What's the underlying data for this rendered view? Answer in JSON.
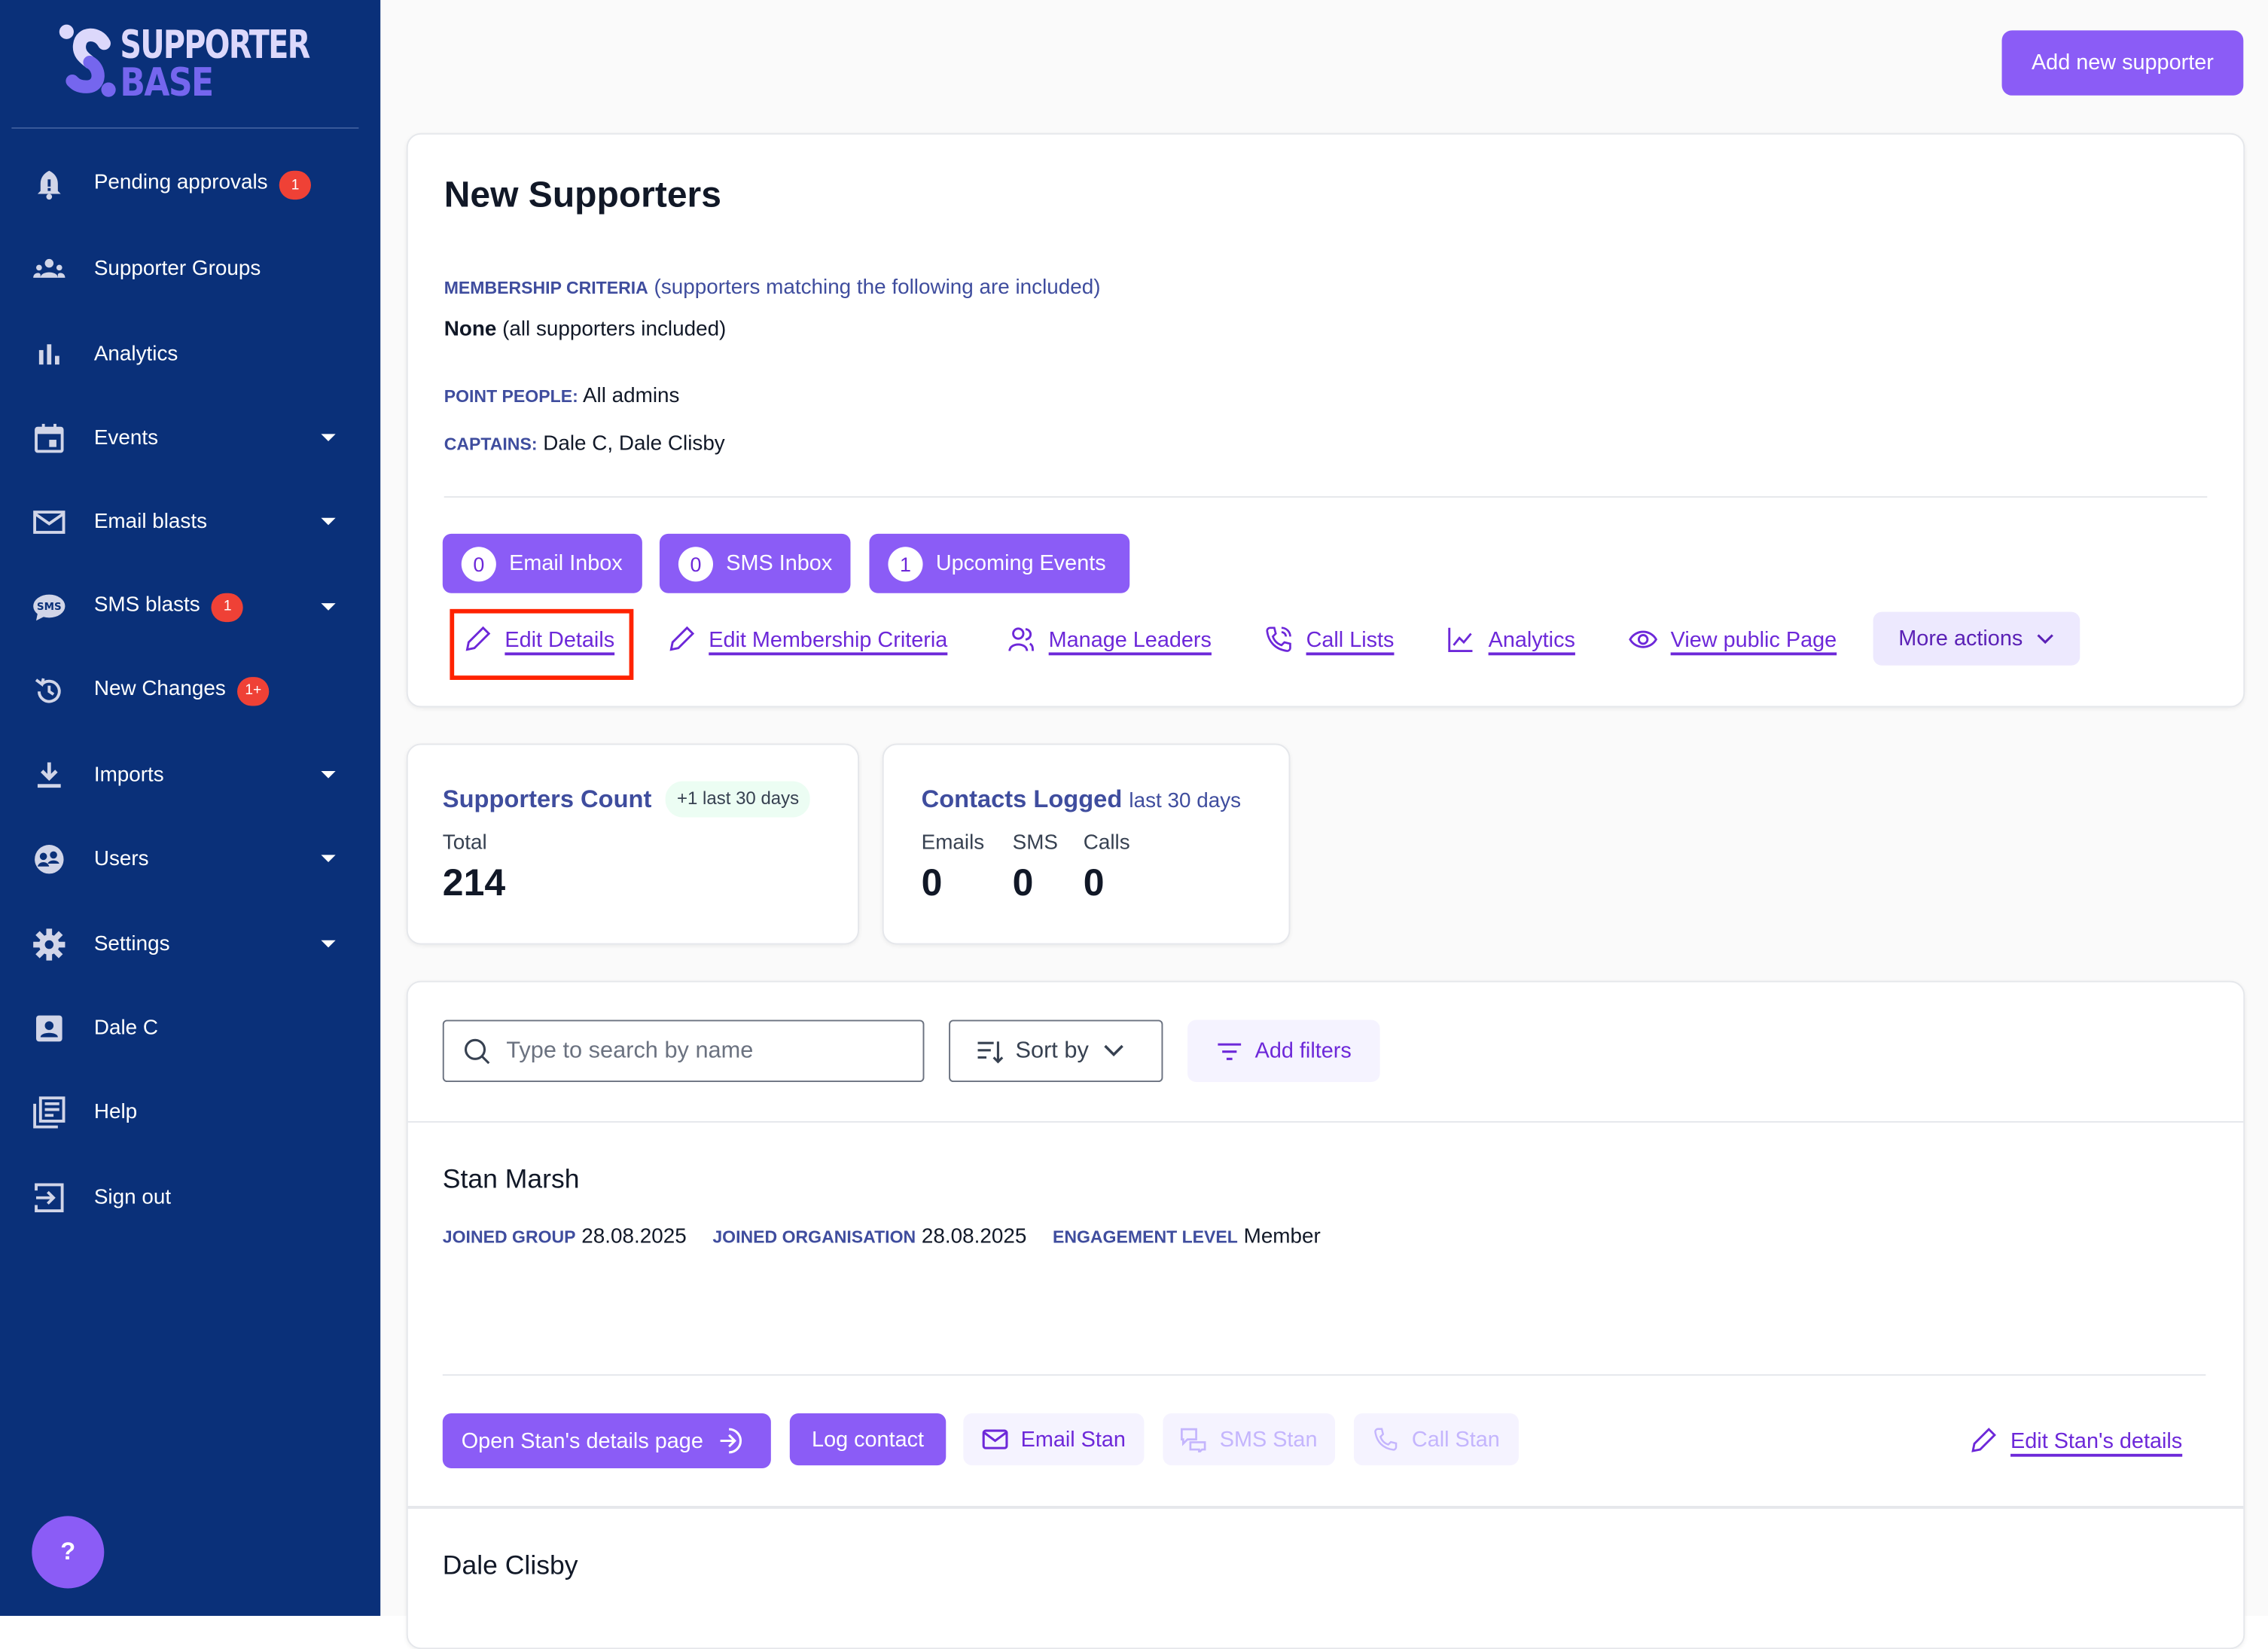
{
  "brand": {
    "line1": "SUPPORTER",
    "line2": "BASE",
    "colors": {
      "sidebar": "#0a3079",
      "accent": "#8b5cf6",
      "link": "#6d28d9",
      "badge": "#ef4136"
    }
  },
  "sidebar": {
    "items": [
      {
        "label": "Pending approvals",
        "icon": "bell-alert-icon",
        "badge": "1"
      },
      {
        "label": "Supporter Groups",
        "icon": "groups-icon"
      },
      {
        "label": "Analytics",
        "icon": "bar-chart-icon"
      },
      {
        "label": "Events",
        "icon": "calendar-icon",
        "dropdown": true
      },
      {
        "label": "Email blasts",
        "icon": "mail-icon",
        "dropdown": true
      },
      {
        "label": "SMS blasts",
        "icon": "sms-icon",
        "badge": "1",
        "dropdown": true
      },
      {
        "label": "New Changes",
        "icon": "history-icon",
        "badge": "1+"
      },
      {
        "label": "Imports",
        "icon": "download-icon",
        "dropdown": true
      },
      {
        "label": "Users",
        "icon": "users-icon",
        "dropdown": true
      },
      {
        "label": "Settings",
        "icon": "gear-icon",
        "dropdown": true
      },
      {
        "label": "Dale C",
        "icon": "account-icon"
      },
      {
        "label": "Help",
        "icon": "book-icon"
      },
      {
        "label": "Sign out",
        "icon": "sign-out-icon"
      }
    ],
    "help_button": "?"
  },
  "header": {
    "add_button": "Add new supporter"
  },
  "group": {
    "title": "New Supporters",
    "criteria_label": "MEMBERSHIP CRITERIA",
    "criteria_note": "(supporters matching the following are included)",
    "criteria_value_bold": "None",
    "criteria_value": "(all supporters included)",
    "point_people_label": "POINT PEOPLE:",
    "point_people": "All admins",
    "captains_label": "CAPTAINS:",
    "captains": "Dale C, Dale Clisby",
    "inbox_buttons": [
      {
        "count": "0",
        "label": "Email Inbox"
      },
      {
        "count": "0",
        "label": "SMS Inbox"
      },
      {
        "count": "1",
        "label": "Upcoming Events"
      }
    ],
    "links": [
      "Edit Details",
      "Edit Membership Criteria",
      "Manage Leaders",
      "Call Lists",
      "Analytics",
      "View public Page"
    ],
    "more_actions": "More actions"
  },
  "stats": {
    "supporters": {
      "title": "Supporters Count",
      "badge": "+1 last 30 days",
      "total_label": "Total",
      "total": "214"
    },
    "contacts": {
      "title": "Contacts Logged",
      "suffix": "last 30 days",
      "cols": [
        {
          "label": "Emails",
          "value": "0"
        },
        {
          "label": "SMS",
          "value": "0"
        },
        {
          "label": "Calls",
          "value": "0"
        }
      ]
    }
  },
  "list": {
    "search_placeholder": "Type to search by name",
    "sort_label": "Sort by",
    "filters_label": "Add filters",
    "supporters": [
      {
        "name": "Stan Marsh",
        "joined_group_label": "JOINED GROUP",
        "joined_group": "28.08.2025",
        "joined_org_label": "JOINED ORGANISATION",
        "joined_org": "28.08.2025",
        "engagement_label": "ENGAGEMENT LEVEL",
        "engagement": "Member",
        "actions": {
          "open": "Open Stan's details page",
          "log": "Log contact",
          "email": "Email Stan",
          "sms": "SMS Stan",
          "call": "Call Stan",
          "edit": "Edit Stan's details"
        }
      },
      {
        "name": "Dale Clisby"
      }
    ]
  }
}
